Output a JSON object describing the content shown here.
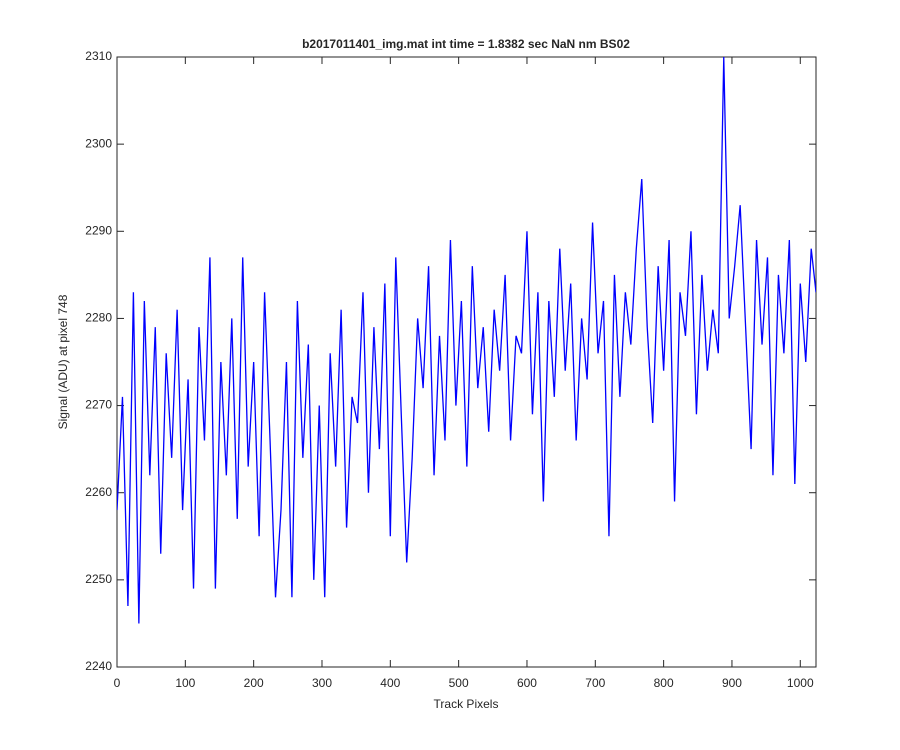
{
  "chart_data": {
    "type": "line",
    "title": "b2017011401_img.mat int time = 1.8382 sec  NaN nm BS02",
    "x_label": "Track Pixels",
    "y_label": "Signal (ADU) at pixel 748",
    "x": [
      0,
      8,
      16,
      24,
      32,
      40,
      48,
      56,
      64,
      72,
      80,
      88,
      96,
      104,
      112,
      120,
      128,
      136,
      144,
      152,
      160,
      168,
      176,
      184,
      192,
      200,
      208,
      216,
      224,
      232,
      240,
      248,
      256,
      264,
      272,
      280,
      288,
      296,
      304,
      312,
      320,
      328,
      336,
      344,
      352,
      360,
      368,
      376,
      384,
      392,
      400,
      408,
      416,
      424,
      432,
      440,
      448,
      456,
      464,
      472,
      480,
      488,
      496,
      504,
      512,
      520,
      528,
      536,
      544,
      552,
      560,
      568,
      576,
      584,
      592,
      600,
      608,
      616,
      624,
      632,
      640,
      648,
      656,
      664,
      672,
      680,
      688,
      696,
      704,
      712,
      720,
      728,
      736,
      744,
      752,
      760,
      768,
      776,
      784,
      792,
      800,
      808,
      816,
      824,
      832,
      840,
      848,
      856,
      864,
      872,
      880,
      888,
      896,
      904,
      912,
      920,
      928,
      936,
      944,
      952,
      960,
      968,
      976,
      984,
      992,
      1000,
      1008,
      1016,
      1023
    ],
    "series": [
      {
        "color": "#0000ff",
        "values": [
          2258,
          2271,
          2247,
          2283,
          2245,
          2282,
          2262,
          2279,
          2253,
          2276,
          2264,
          2281,
          2258,
          2273,
          2249,
          2279,
          2266,
          2287,
          2249,
          2275,
          2262,
          2280,
          2257,
          2287,
          2263,
          2275,
          2255,
          2283,
          2266,
          2248,
          2258,
          2275,
          2248,
          2282,
          2264,
          2277,
          2250,
          2270,
          2248,
          2276,
          2263,
          2281,
          2256,
          2271,
          2268,
          2283,
          2260,
          2279,
          2265,
          2284,
          2255,
          2287,
          2269,
          2252,
          2264,
          2280,
          2272,
          2286,
          2262,
          2278,
          2266,
          2289,
          2270,
          2282,
          2263,
          2286,
          2272,
          2279,
          2267,
          2281,
          2274,
          2285,
          2266,
          2278,
          2276,
          2290,
          2269,
          2283,
          2259,
          2282,
          2271,
          2288,
          2274,
          2284,
          2266,
          2280,
          2273,
          2291,
          2276,
          2282,
          2255,
          2285,
          2271,
          2283,
          2277,
          2288,
          2296,
          2279,
          2268,
          2286,
          2274,
          2289,
          2259,
          2283,
          2278,
          2290,
          2269,
          2285,
          2274,
          2281,
          2276,
          2310,
          2280,
          2286,
          2293,
          2279,
          2265,
          2289,
          2277,
          2287,
          2262,
          2285,
          2276,
          2289,
          2261,
          2284,
          2275,
          2288,
          2283
        ]
      }
    ],
    "xlim": [
      0,
      1023
    ],
    "ylim": [
      2240,
      2310
    ],
    "xticks": [
      0,
      100,
      200,
      300,
      400,
      500,
      600,
      700,
      800,
      900,
      1000
    ],
    "yticks": [
      2240,
      2250,
      2260,
      2270,
      2280,
      2290,
      2300,
      2310
    ]
  }
}
